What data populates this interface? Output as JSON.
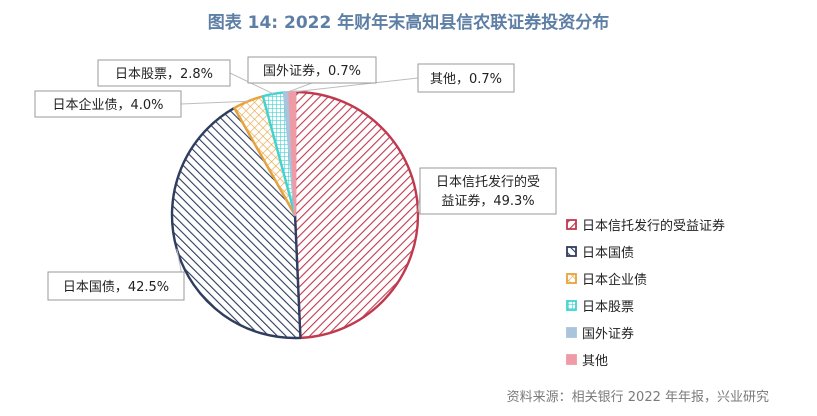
{
  "title": "图表 14: 2022 年财年末高知县信农联证券投资分布",
  "source": "资料来源：相关银行 2022 年年报，兴业研究",
  "chart_data": {
    "type": "pie",
    "slices": [
      {
        "name": "日本信托发行的受益证券",
        "value": 49.3,
        "label": "49.3%",
        "color": "#C0394F",
        "pattern": "diag-right"
      },
      {
        "name": "日本国债",
        "value": 42.5,
        "label": "42.5%",
        "color": "#2F3D5E",
        "pattern": "diag-left"
      },
      {
        "name": "日本企业债",
        "value": 4.0,
        "label": "4.0%",
        "color": "#E8A33C",
        "pattern": "cross"
      },
      {
        "name": "日本股票",
        "value": 2.8,
        "label": "2.8%",
        "color": "#3FD4D2",
        "pattern": "grid"
      },
      {
        "name": "国外证券",
        "value": 0.7,
        "label": "0.7%",
        "color": "#A9C4DC",
        "pattern": "solid"
      },
      {
        "name": "其他",
        "value": 0.7,
        "label": "0.7%",
        "color": "#F09AA6",
        "pattern": "solid"
      }
    ],
    "callouts": [
      {
        "slice": 0,
        "line1": "日本信托发行的受",
        "line2": "益证券，49.3%"
      },
      {
        "slice": 1,
        "line1": "日本国债，42.5%"
      },
      {
        "slice": 2,
        "line1": "日本企业债，4.0%"
      },
      {
        "slice": 3,
        "line1": "日本股票，2.8%"
      },
      {
        "slice": 4,
        "line1": "国外证券，0.7%"
      },
      {
        "slice": 5,
        "line1": "其他，0.7%"
      }
    ],
    "legend_position": "right"
  }
}
